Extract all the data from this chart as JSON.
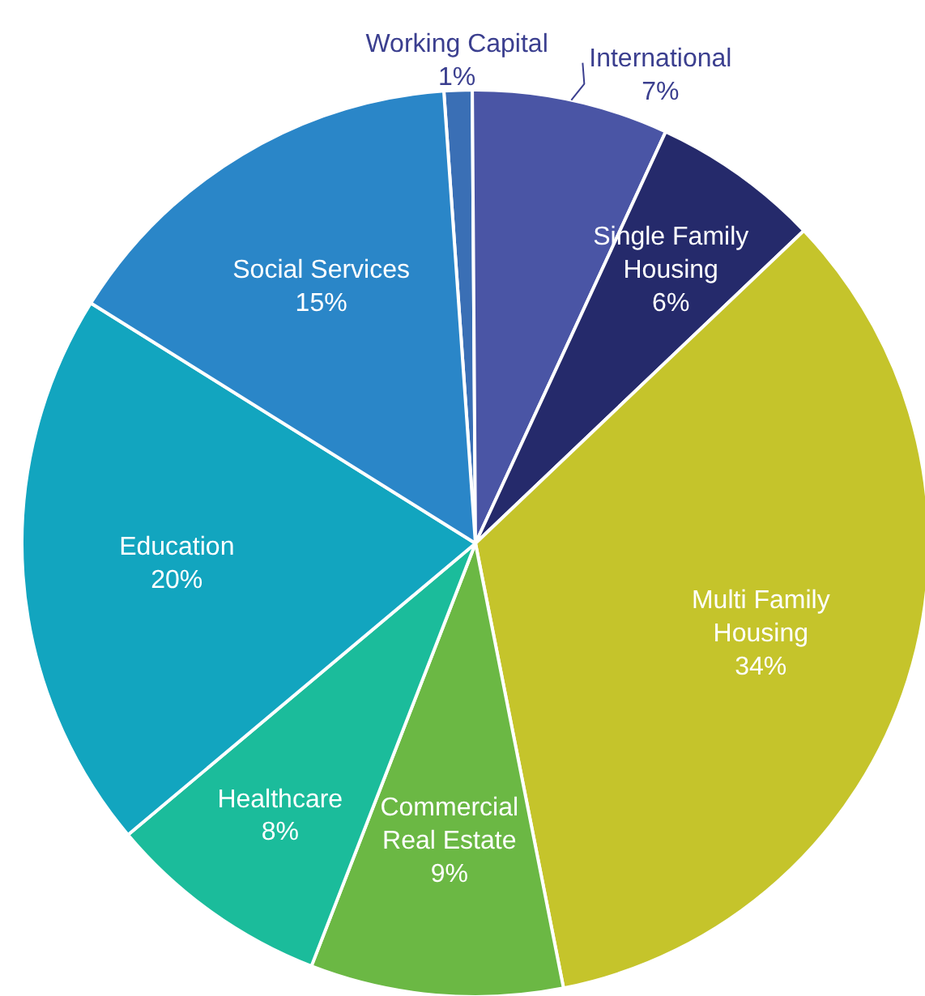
{
  "chart_data": {
    "type": "pie",
    "categories": [
      "Working Capital",
      "International",
      "Single Family\nHousing",
      "Multi Family\nHousing",
      "Commercial\nReal Estate",
      "Healthcare",
      "Education",
      "Social Services"
    ],
    "values": [
      1,
      7,
      6,
      34,
      9,
      8,
      20,
      15
    ],
    "colors": [
      "#3a6fb5",
      "#4a55a5",
      "#252a6b",
      "#c5c42b",
      "#6bb844",
      "#1bbc9b",
      "#12a5bf",
      "#2a86c8"
    ],
    "value_labels": [
      "1%",
      "7%",
      "6%",
      "34%",
      "9%",
      "8%",
      "20%",
      "15%"
    ]
  }
}
